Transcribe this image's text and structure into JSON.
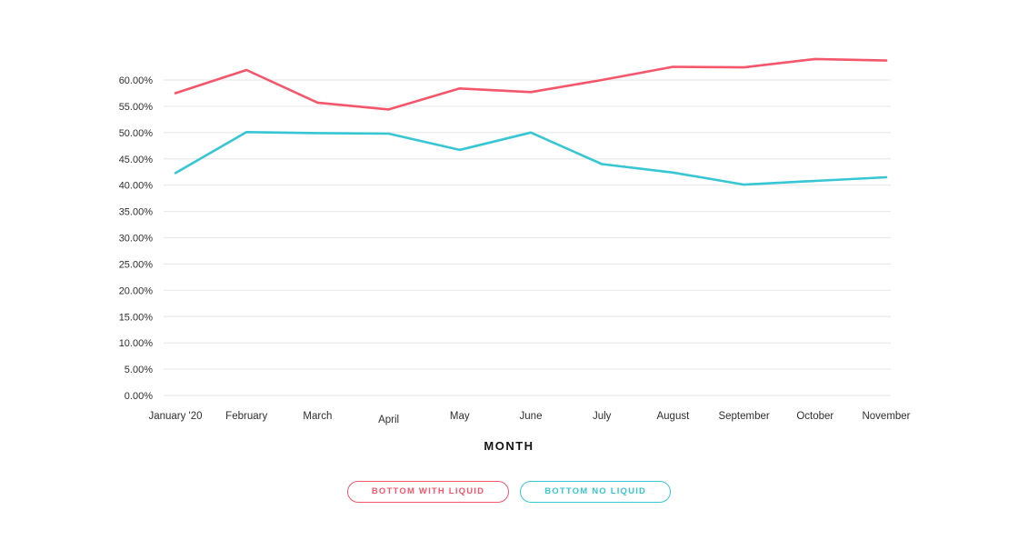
{
  "chart_data": {
    "type": "line",
    "title": "",
    "xlabel": "MONTH",
    "ylabel": "",
    "categories": [
      "January '20",
      "February",
      "March",
      "April",
      "May",
      "June",
      "July",
      "August",
      "September",
      "October",
      "November"
    ],
    "ylim": [
      0,
      60
    ],
    "ytick_step": 5,
    "y_tick_labels": [
      "60.00%",
      "55.00%",
      "50.00%",
      "45.00%",
      "40.00%",
      "35.00%",
      "30.00%",
      "25.00%",
      "20.00%",
      "15.00%",
      "10.00%",
      "5.00%",
      "0.00%"
    ],
    "grid": true,
    "grid_color": "#e9e9e9",
    "text_color": "#2f2f2f",
    "legend_position": "bottom",
    "series": [
      {
        "name": "BOTTOM WITH LIQUID",
        "color": "#f4566b",
        "values": [
          57.5,
          61.9,
          55.7,
          54.4,
          58.4,
          57.7,
          60.0,
          62.5,
          62.4,
          64.0,
          63.7
        ]
      },
      {
        "name": "BOTTOM NO LIQUID",
        "color": "#36c6d4",
        "values": [
          42.3,
          50.1,
          49.9,
          49.8,
          46.7,
          50.0,
          44.0,
          42.4,
          40.1,
          40.8,
          41.5
        ]
      }
    ]
  }
}
